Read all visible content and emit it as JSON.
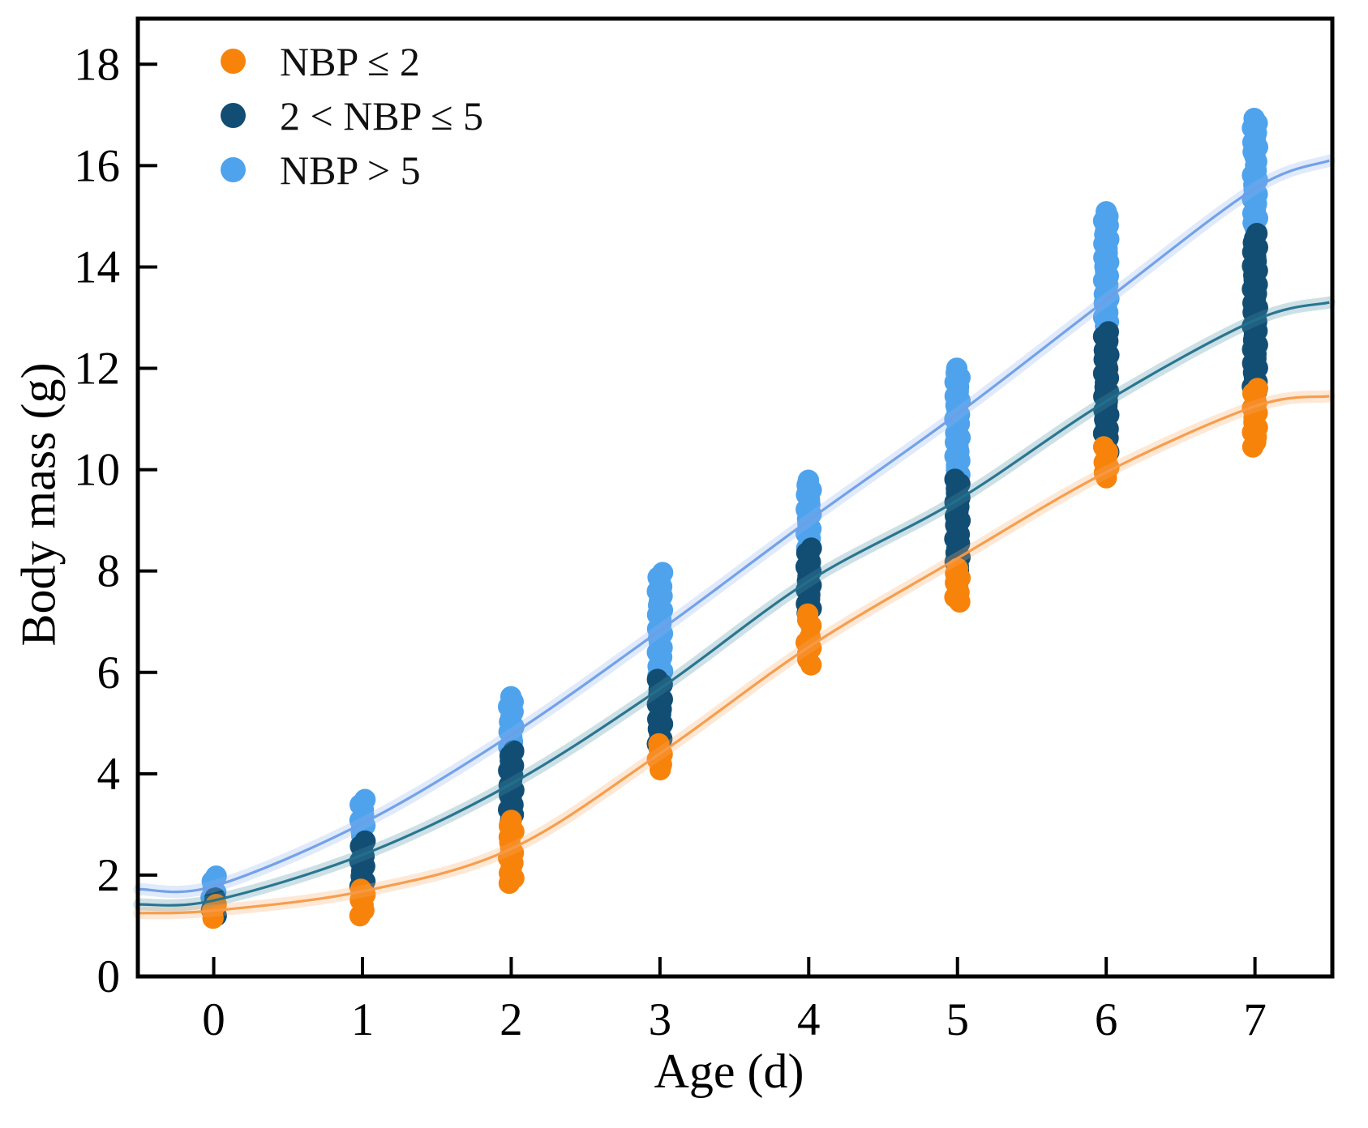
{
  "figure": {
    "background": "#ffffff",
    "title": ""
  },
  "legend": {
    "position": "top-left",
    "items": [
      {
        "label": "NBP ≤ 2",
        "color": "#F7830B",
        "marker": "circle"
      },
      {
        "label": "2 < NBP ≤ 5",
        "color": "#124E74",
        "marker": "circle"
      },
      {
        "label": "NBP > 5",
        "color": "#4FA3ED",
        "marker": "circle"
      }
    ]
  },
  "chart_data": {
    "type": "scatter",
    "title": "",
    "xlabel": "Age (d)",
    "ylabel": "Body mass (g)",
    "xlim": [
      -0.51,
      7.52
    ],
    "ylim": [
      0,
      18.9
    ],
    "x_ticks": [
      0,
      1,
      2,
      3,
      4,
      5,
      6,
      7
    ],
    "y_ticks": [
      0,
      2,
      4,
      6,
      8,
      10,
      12,
      14,
      16,
      18
    ],
    "grid": false,
    "axis_color": "#000000",
    "series": [
      {
        "name": "NBP > 5",
        "dot_color": "#4FA3ED",
        "line_color": "#6D9EE8",
        "band_color": "#8FB4EE",
        "clusters": {
          "0": [
            [
              1.35,
              1.98
            ]
          ],
          "1": [
            [
              2.67,
              3.49
            ]
          ],
          "2": [
            [
              4.43,
              5.52
            ]
          ],
          "3": [
            [
              5.84,
              7.97
            ]
          ],
          "4": [
            [
              8.45,
              9.79
            ]
          ],
          "5": [
            [
              9.81,
              12.0
            ]
          ],
          "6": [
            [
              12.83,
              15.09
            ]
          ],
          "7": [
            [
              16.08,
              16.93
            ],
            [
              14.68,
              16.0
            ]
          ]
        },
        "trend": {
          "x": [
            -0.5,
            0,
            1,
            2,
            3,
            4,
            5,
            6,
            7,
            7.5
          ],
          "y": [
            1.72,
            1.78,
            3.02,
            4.77,
            6.83,
            9.0,
            11.1,
            13.35,
            15.55,
            16.1
          ]
        }
      },
      {
        "name": "2 < NBP ≤ 5",
        "dot_color": "#124E74",
        "line_color": "#21708C",
        "band_color": "#4C8EA6",
        "clusters": {
          "0": [
            [
              1.2,
              1.55
            ]
          ],
          "1": [
            [
              1.68,
              2.67
            ]
          ],
          "2": [
            [
              3.0,
              4.45
            ]
          ],
          "3": [
            [
              4.59,
              5.86
            ]
          ],
          "4": [
            [
              7.17,
              8.45
            ]
          ],
          "5": [
            [
              8.0,
              9.81
            ]
          ],
          "6": [
            [
              10.35,
              12.72
            ]
          ],
          "7": [
            [
              11.55,
              14.66
            ]
          ]
        },
        "trend": {
          "x": [
            -0.5,
            0,
            1,
            2,
            3,
            4,
            5,
            6,
            7,
            7.5
          ],
          "y": [
            1.42,
            1.5,
            2.4,
            3.8,
            5.68,
            7.8,
            9.4,
            11.35,
            12.95,
            13.3
          ]
        }
      },
      {
        "name": "NBP ≤ 2",
        "dot_color": "#F7830B",
        "line_color": "#F79A47",
        "band_color": "#F9AE6C",
        "clusters": {
          "0": [
            [
              1.15,
              1.42
            ]
          ],
          "1": [
            [
              1.2,
              1.72
            ]
          ],
          "2": [
            [
              2.75,
              3.08
            ],
            [
              1.84,
              2.64
            ]
          ],
          "3": [
            [
              4.08,
              4.59
            ]
          ],
          "4": [
            [
              6.92,
              7.15
            ],
            [
              6.15,
              6.7
            ]
          ],
          "5": [
            [
              7.39,
              8.05
            ]
          ],
          "6": [
            [
              9.84,
              10.45
            ]
          ],
          "7": [
            [
              10.45,
              11.6
            ]
          ]
        },
        "trend": {
          "x": [
            -0.5,
            0,
            1,
            2,
            3,
            4,
            5,
            6,
            7,
            7.5
          ],
          "y": [
            1.25,
            1.3,
            1.68,
            2.52,
            4.4,
            6.5,
            8.25,
            9.95,
            11.25,
            11.45
          ]
        }
      }
    ]
  }
}
